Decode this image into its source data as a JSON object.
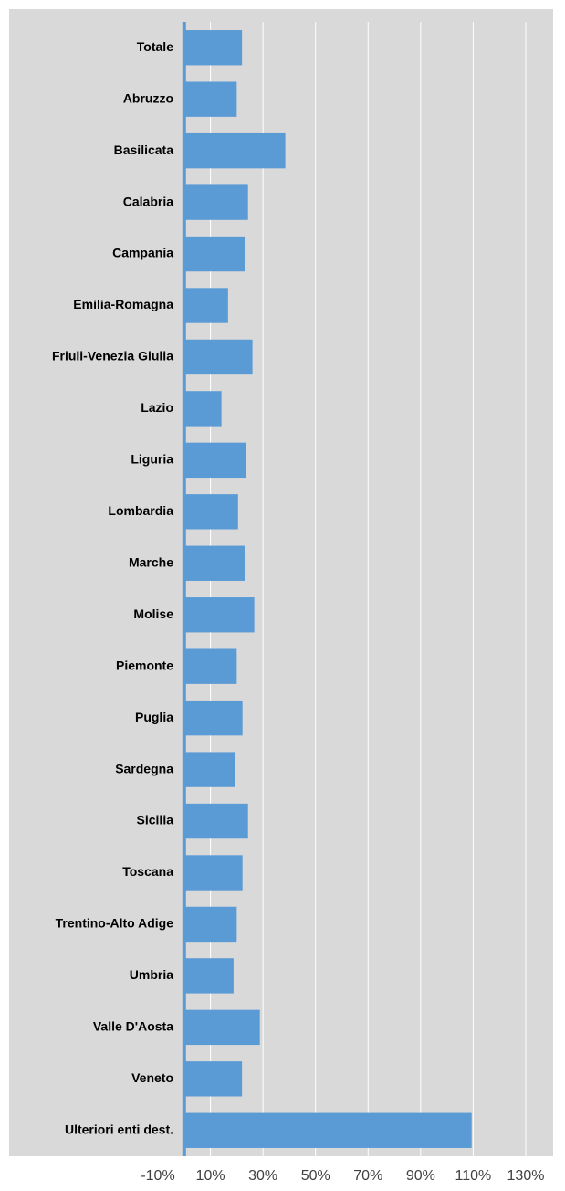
{
  "chart_data": {
    "type": "hbar",
    "categories": [
      "Totale",
      "Abruzzo",
      "Basilicata",
      "Calabria",
      "Campania",
      "Emilia-Romagna",
      "Friuli-Venezia Giulia",
      "Lazio",
      "Liguria",
      "Lombardia",
      "Marche",
      "Molise",
      "Piemonte",
      "Puglia",
      "Sardegna",
      "Sicilia",
      "Toscana",
      "Trentino-Alto Adige",
      "Umbria",
      "Valle D'Aosta",
      "Veneto",
      "Ulteriori enti dest."
    ],
    "values": [
      22,
      20,
      38.5,
      24.3,
      23,
      16.7,
      26,
      14.2,
      23.6,
      20.5,
      23,
      26.7,
      20,
      22.2,
      19.4,
      24.3,
      22.2,
      20,
      18.8,
      28.8,
      22,
      109.4
    ],
    "color": "#5b9bd5",
    "xlim": [
      -10,
      130
    ],
    "xticks": [
      {
        "value": -10,
        "label": "-10%"
      },
      {
        "value": 10,
        "label": "10%"
      },
      {
        "value": 30,
        "label": "30%"
      },
      {
        "value": 50,
        "label": "50%"
      },
      {
        "value": 70,
        "label": "70%"
      },
      {
        "value": 90,
        "label": "90%"
      },
      {
        "value": 110,
        "label": "110%"
      },
      {
        "value": 130,
        "label": "130%"
      }
    ],
    "grid": true
  }
}
